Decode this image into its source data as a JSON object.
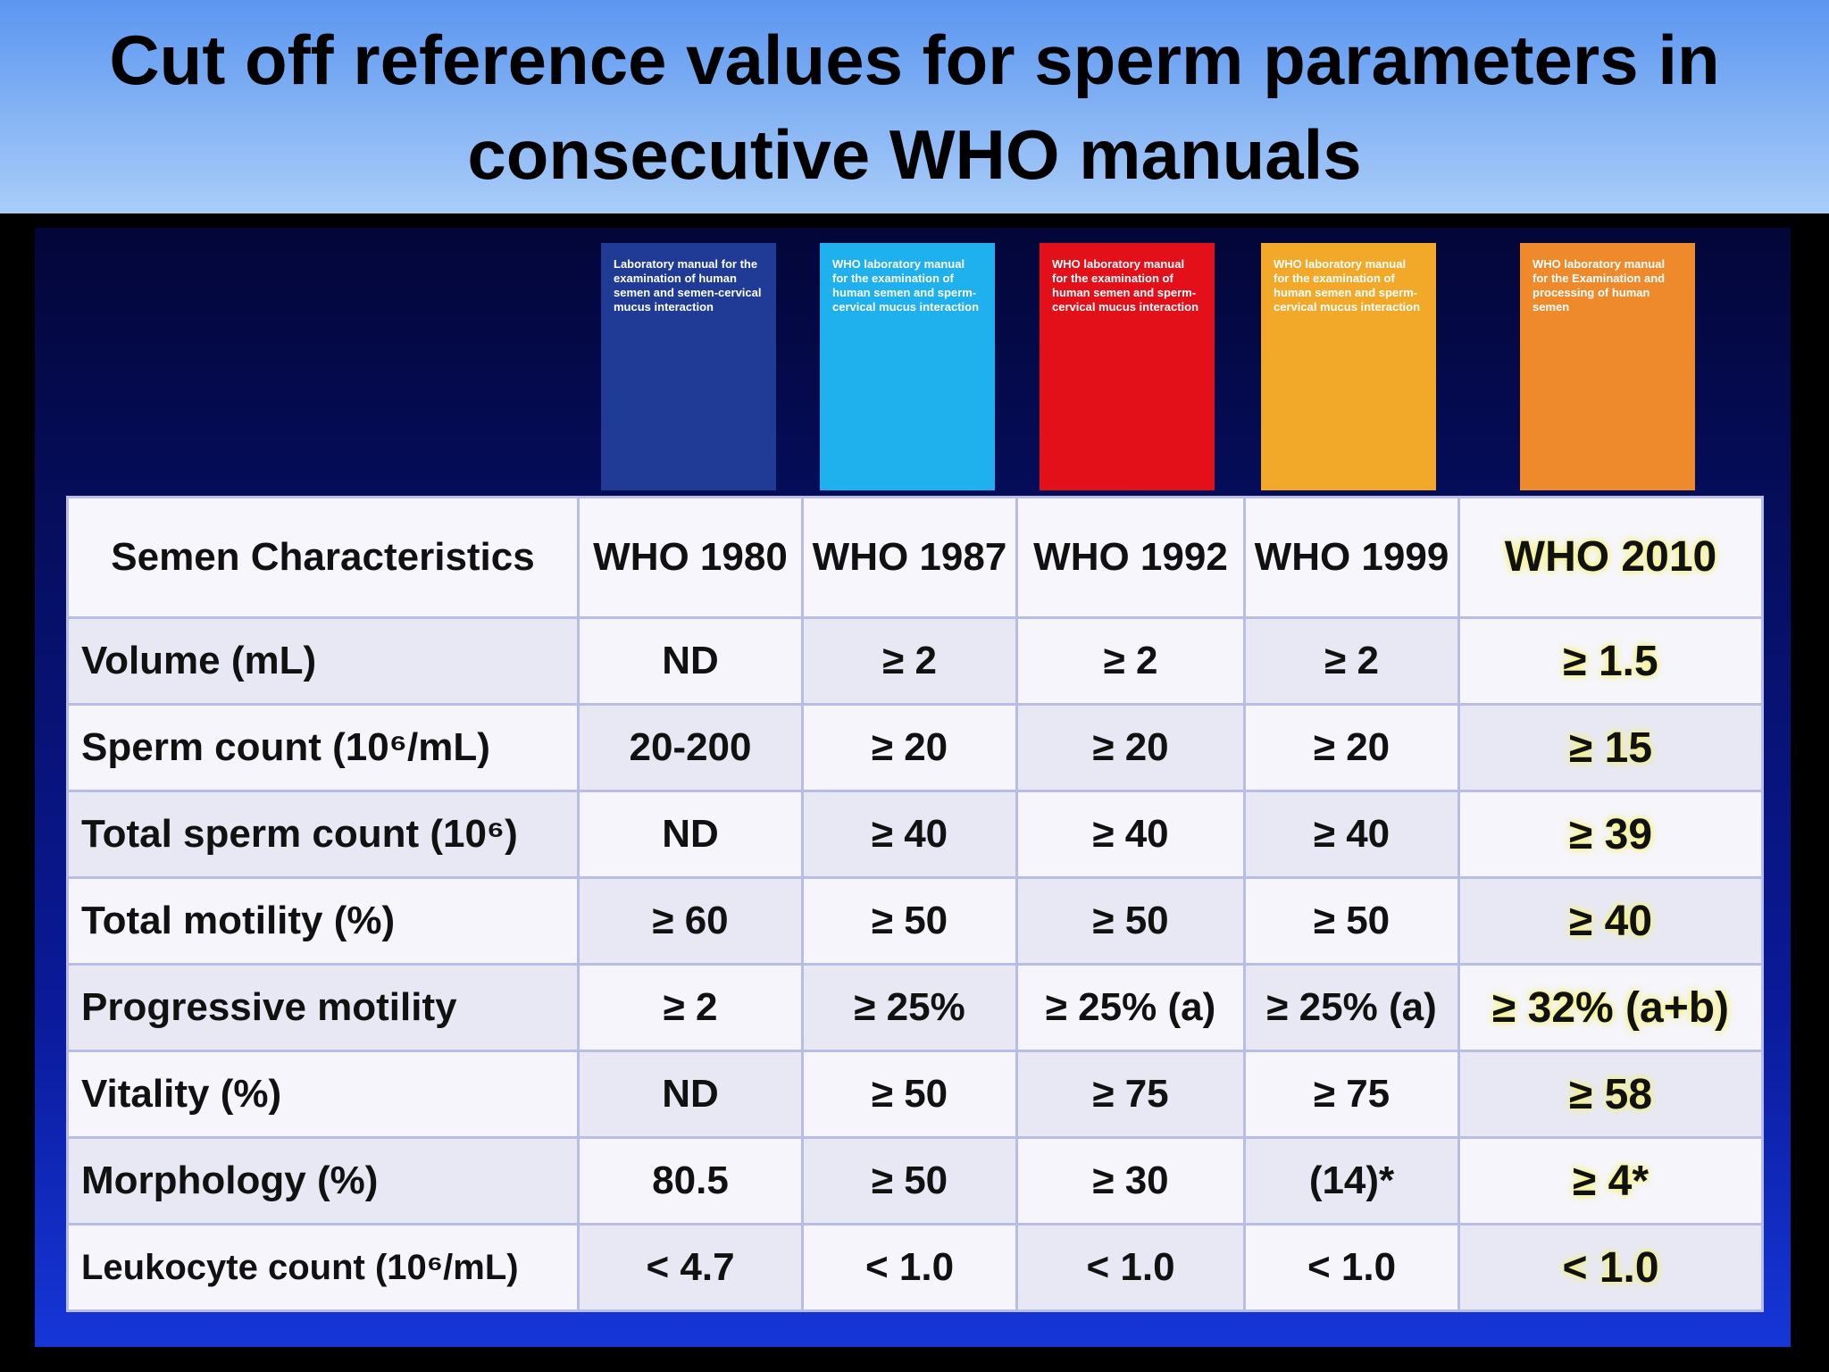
{
  "title": "Cut off reference values for sperm parameters in consecutive WHO manuals",
  "covers": [
    {
      "text": "Laboratory manual for the examination of human semen and semen-cervical mucus interaction",
      "color": "#1f3b96"
    },
    {
      "text": "WHO laboratory manual for the examination of human semen and sperm-cervical mucus interaction",
      "color": "#1fb0ee"
    },
    {
      "text": "WHO laboratory manual for the examination of human semen and sperm-cervical mucus interaction",
      "color": "#e3101a"
    },
    {
      "text": "WHO laboratory manual for the examination of human semen and sperm-cervical mucus interaction",
      "color": "#f2a92a"
    },
    {
      "text": "WHO laboratory manual for the Examination and processing of human semen",
      "color": "#ef8a2c"
    }
  ],
  "table": {
    "header": [
      "Semen Characteristics",
      "WHO 1980",
      "WHO 1987",
      "WHO 1992",
      "WHO 1999",
      "WHO 2010"
    ],
    "rows": [
      [
        "Volume (mL)",
        "ND",
        "≥ 2",
        "≥ 2",
        "≥ 2",
        "≥ 1.5"
      ],
      [
        "Sperm count (10⁶/mL)",
        "20-200",
        "≥ 20",
        "≥ 20",
        "≥ 20",
        "≥ 15"
      ],
      [
        "Total sperm count (10⁶)",
        "ND",
        "≥ 40",
        "≥ 40",
        "≥ 40",
        "≥ 39"
      ],
      [
        "Total motility (%)",
        "≥ 60",
        "≥ 50",
        "≥ 50",
        "≥ 50",
        "≥ 40"
      ],
      [
        "Progressive motility",
        "≥ 2",
        "≥ 25%",
        "≥ 25% (a)",
        "≥ 25% (a)",
        "≥ 32% (a+b)"
      ],
      [
        "Vitality (%)",
        "ND",
        "≥ 50",
        "≥ 75",
        "≥ 75",
        "≥ 58"
      ],
      [
        "Morphology (%)",
        "80.5",
        "≥ 50",
        "≥ 30",
        "(14)*",
        "≥ 4*"
      ],
      [
        "Leukocyte count (10⁶/mL)",
        "< 4.7",
        "< 1.0",
        "< 1.0",
        "< 1.0",
        "< 1.0"
      ]
    ]
  }
}
